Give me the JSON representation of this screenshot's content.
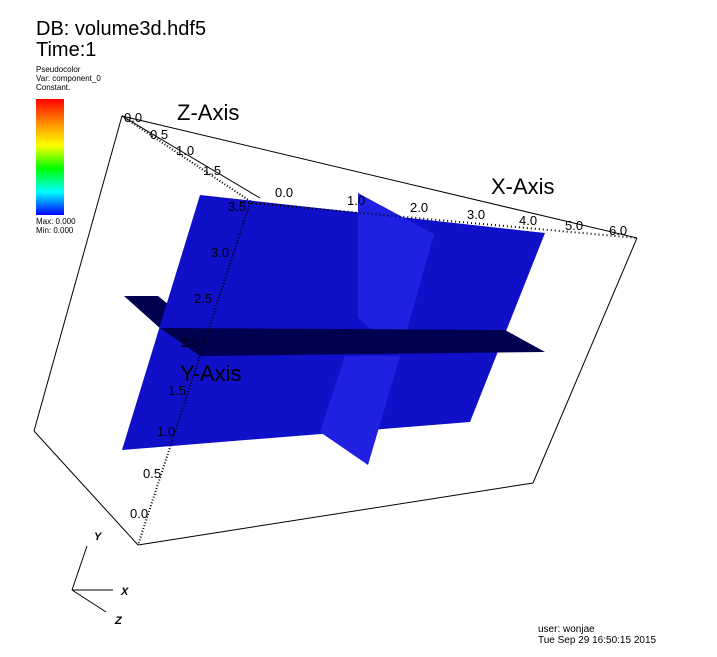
{
  "header": {
    "db_label": "DB: volume3d.hdf5",
    "time_label": "Time:1"
  },
  "legend": {
    "plot_type": "Pseudocolor",
    "variable": "Var: component_0",
    "mode": "Constant.",
    "max_label": "Max:  0.000",
    "min_label": "Min:  0.000",
    "colormap": [
      "#ff0000",
      "#ff8800",
      "#ffff00",
      "#00ff00",
      "#00ffff",
      "#0000ff"
    ]
  },
  "axes": {
    "x_title": "X-Axis",
    "y_title": "Y-Axis",
    "z_title": "Z-Axis",
    "x_ticks": [
      "0.0",
      "1.0",
      "2.0",
      "3.0",
      "4.0",
      "5.0",
      "6.0"
    ],
    "y_ticks": [
      "0.0",
      "0.5",
      "1.0",
      "1.5",
      "2.0",
      "2.5",
      "3.0",
      "3.5"
    ],
    "z_ticks": [
      "0.0",
      "0.5",
      "1.0",
      "1.5"
    ]
  },
  "triad": {
    "x": "X",
    "y": "Y",
    "z": "Z"
  },
  "footer": {
    "user": "user: wonjae",
    "timestamp": "Tue Sep 29 16:50:15 2015"
  },
  "colors": {
    "slice_front": "#1010c8",
    "slice_side": "#2020e0",
    "slice_horizontal": "#000050",
    "bounding_box": "#000000"
  }
}
